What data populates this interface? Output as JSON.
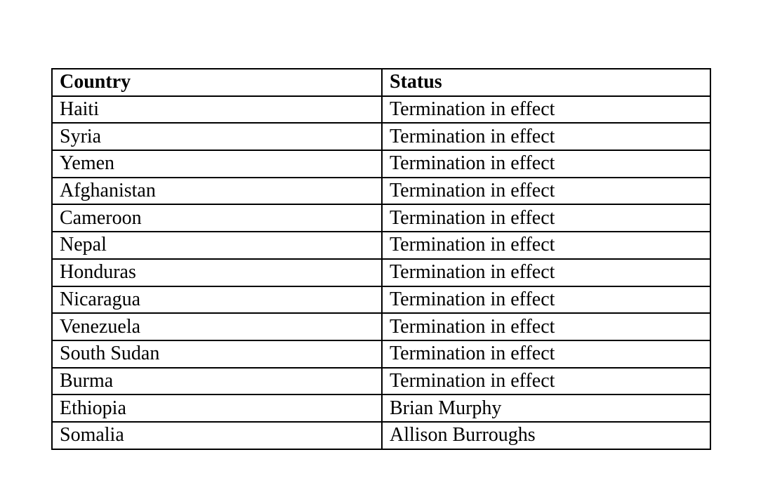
{
  "table": {
    "header": [
      "Country",
      "Status"
    ],
    "rows": [
      [
        "Haiti",
        "Termination in effect"
      ],
      [
        "Syria",
        "Termination in effect"
      ],
      [
        "Yemen",
        "Termination in effect"
      ],
      [
        "Afghanistan",
        "Termination in effect"
      ],
      [
        "Cameroon",
        "Termination in effect"
      ],
      [
        "Nepal",
        "Termination in effect"
      ],
      [
        "Honduras",
        "Termination in effect"
      ],
      [
        "Nicaragua",
        "Termination in effect"
      ],
      [
        "Venezuela",
        "Termination in effect"
      ],
      [
        "South Sudan",
        "Termination in effect"
      ],
      [
        "Burma",
        "Termination in effect"
      ],
      [
        "Ethiopia",
        "Brian Murphy"
      ],
      [
        "Somalia",
        "Allison Burroughs"
      ]
    ]
  }
}
